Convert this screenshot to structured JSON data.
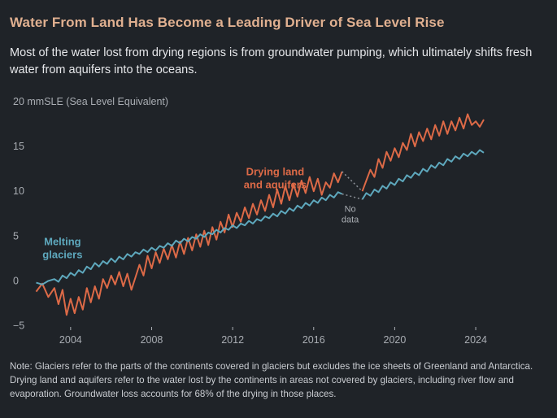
{
  "title": "Water From Land Has Become a Leading Driver of Sea Level Rise",
  "subtitle": "Most of the water lost from drying regions is from groundwater pumping, which ultimately shifts fresh water from aquifers into the oceans.",
  "note": "Note: Glaciers refer to the parts of the continents covered in glaciers but excludes the ice sheets of Greenland and Antarctica. Drying land and aquifers refer to the water lost by the continents in areas not covered by glaciers, including river flow and evaporation. Groundwater loss accounts for 68% of the drying in those places.",
  "colors": {
    "glaciers": "#5ea8bd",
    "drying": "#dd6a47",
    "gap": "#8a8f96",
    "axis_text": "#a9adb3",
    "title": "#e0b090"
  },
  "chart_data": {
    "type": "line",
    "ylabel": "mmSLE (Sea Level Equivalent)",
    "xlim": [
      2002.2,
      2024.6
    ],
    "ylim": [
      -5.5,
      20
    ],
    "x_ticks": [
      2004,
      2008,
      2012,
      2016,
      2020,
      2024
    ],
    "y_ticks": [
      -5,
      0,
      5,
      10,
      15,
      20
    ],
    "gap_label": "No data",
    "gap_range": [
      2017.5,
      2018.4
    ],
    "series": [
      {
        "name": "Drying land and aquifers",
        "label_lines": [
          "Drying land",
          "and aquifers"
        ],
        "color": "#dd6a47",
        "points": [
          [
            2002.3,
            -1.2
          ],
          [
            2002.6,
            -0.3
          ],
          [
            2002.9,
            -1.8
          ],
          [
            2003.2,
            -0.8
          ],
          [
            2003.4,
            -2.6
          ],
          [
            2003.6,
            -1.0
          ],
          [
            2003.8,
            -3.8
          ],
          [
            2004.0,
            -2.0
          ],
          [
            2004.2,
            -3.6
          ],
          [
            2004.4,
            -1.8
          ],
          [
            2004.6,
            -3.2
          ],
          [
            2004.8,
            -0.8
          ],
          [
            2005.0,
            -2.4
          ],
          [
            2005.2,
            -0.6
          ],
          [
            2005.4,
            -2.0
          ],
          [
            2005.6,
            0.2
          ],
          [
            2005.8,
            -0.8
          ],
          [
            2006.0,
            0.6
          ],
          [
            2006.2,
            -0.4
          ],
          [
            2006.4,
            1.0
          ],
          [
            2006.6,
            -0.6
          ],
          [
            2006.8,
            0.8
          ],
          [
            2007.0,
            -1.0
          ],
          [
            2007.2,
            0.4
          ],
          [
            2007.4,
            1.8
          ],
          [
            2007.6,
            0.6
          ],
          [
            2007.8,
            2.8
          ],
          [
            2008.0,
            1.4
          ],
          [
            2008.2,
            3.2
          ],
          [
            2008.4,
            2.0
          ],
          [
            2008.6,
            3.6
          ],
          [
            2008.8,
            2.4
          ],
          [
            2009.0,
            4.0
          ],
          [
            2009.2,
            2.6
          ],
          [
            2009.4,
            4.4
          ],
          [
            2009.6,
            3.0
          ],
          [
            2009.8,
            4.8
          ],
          [
            2010.0,
            3.4
          ],
          [
            2010.2,
            5.2
          ],
          [
            2010.4,
            3.8
          ],
          [
            2010.6,
            5.6
          ],
          [
            2010.8,
            4.0
          ],
          [
            2011.0,
            6.0
          ],
          [
            2011.2,
            4.6
          ],
          [
            2011.4,
            6.6
          ],
          [
            2011.6,
            5.4
          ],
          [
            2011.8,
            7.4
          ],
          [
            2012.0,
            6.0
          ],
          [
            2012.2,
            7.6
          ],
          [
            2012.4,
            6.6
          ],
          [
            2012.6,
            8.2
          ],
          [
            2012.8,
            7.0
          ],
          [
            2013.0,
            8.6
          ],
          [
            2013.2,
            7.4
          ],
          [
            2013.4,
            9.0
          ],
          [
            2013.6,
            7.8
          ],
          [
            2013.8,
            9.6
          ],
          [
            2014.0,
            8.2
          ],
          [
            2014.2,
            10.2
          ],
          [
            2014.4,
            8.6
          ],
          [
            2014.6,
            10.6
          ],
          [
            2014.8,
            9.0
          ],
          [
            2015.0,
            10.8
          ],
          [
            2015.2,
            9.4
          ],
          [
            2015.4,
            11.2
          ],
          [
            2015.6,
            9.8
          ],
          [
            2015.8,
            11.6
          ],
          [
            2016.0,
            10.0
          ],
          [
            2016.2,
            11.4
          ],
          [
            2016.4,
            9.6
          ],
          [
            2016.6,
            11.0
          ],
          [
            2016.8,
            10.4
          ],
          [
            2017.0,
            12.0
          ],
          [
            2017.2,
            11.0
          ],
          [
            2017.4,
            12.2
          ]
        ],
        "points_after_gap": [
          [
            2018.4,
            10.0
          ],
          [
            2018.6,
            11.2
          ],
          [
            2018.8,
            12.4
          ],
          [
            2019.0,
            11.6
          ],
          [
            2019.2,
            13.6
          ],
          [
            2019.4,
            12.6
          ],
          [
            2019.6,
            14.4
          ],
          [
            2019.8,
            13.4
          ],
          [
            2020.0,
            14.8
          ],
          [
            2020.2,
            13.8
          ],
          [
            2020.4,
            15.4
          ],
          [
            2020.6,
            14.6
          ],
          [
            2020.8,
            16.4
          ],
          [
            2021.0,
            15.0
          ],
          [
            2021.2,
            16.6
          ],
          [
            2021.4,
            15.6
          ],
          [
            2021.6,
            17.0
          ],
          [
            2021.8,
            15.8
          ],
          [
            2022.0,
            17.4
          ],
          [
            2022.2,
            16.2
          ],
          [
            2022.4,
            17.8
          ],
          [
            2022.6,
            16.4
          ],
          [
            2022.8,
            17.8
          ],
          [
            2023.0,
            16.8
          ],
          [
            2023.2,
            18.2
          ],
          [
            2023.4,
            17.0
          ],
          [
            2023.6,
            18.6
          ],
          [
            2023.8,
            17.4
          ],
          [
            2024.0,
            17.8
          ],
          [
            2024.2,
            17.2
          ],
          [
            2024.4,
            18.0
          ]
        ]
      },
      {
        "name": "Melting glaciers",
        "label_lines": [
          "Melting",
          "glaciers"
        ],
        "color": "#5ea8bd",
        "points": [
          [
            2002.3,
            -0.2
          ],
          [
            2002.6,
            -0.4
          ],
          [
            2002.9,
            0.0
          ],
          [
            2003.2,
            0.2
          ],
          [
            2003.4,
            -0.1
          ],
          [
            2003.6,
            0.6
          ],
          [
            2003.8,
            0.3
          ],
          [
            2004.0,
            0.9
          ],
          [
            2004.2,
            0.6
          ],
          [
            2004.4,
            1.2
          ],
          [
            2004.6,
            0.9
          ],
          [
            2004.8,
            1.6
          ],
          [
            2005.0,
            1.3
          ],
          [
            2005.2,
            2.0
          ],
          [
            2005.4,
            1.6
          ],
          [
            2005.6,
            2.2
          ],
          [
            2005.8,
            1.9
          ],
          [
            2006.0,
            2.5
          ],
          [
            2006.2,
            2.1
          ],
          [
            2006.4,
            2.7
          ],
          [
            2006.6,
            2.4
          ],
          [
            2006.8,
            3.0
          ],
          [
            2007.0,
            2.7
          ],
          [
            2007.2,
            3.2
          ],
          [
            2007.4,
            3.0
          ],
          [
            2007.6,
            3.5
          ],
          [
            2007.8,
            3.2
          ],
          [
            2008.0,
            3.7
          ],
          [
            2008.2,
            3.4
          ],
          [
            2008.4,
            3.9
          ],
          [
            2008.6,
            3.7
          ],
          [
            2008.8,
            4.2
          ],
          [
            2009.0,
            3.9
          ],
          [
            2009.2,
            4.5
          ],
          [
            2009.4,
            4.2
          ],
          [
            2009.6,
            4.7
          ],
          [
            2009.8,
            4.4
          ],
          [
            2010.0,
            4.9
          ],
          [
            2010.2,
            4.7
          ],
          [
            2010.4,
            5.2
          ],
          [
            2010.6,
            4.9
          ],
          [
            2010.8,
            5.4
          ],
          [
            2011.0,
            5.2
          ],
          [
            2011.2,
            5.7
          ],
          [
            2011.4,
            5.4
          ],
          [
            2011.6,
            5.9
          ],
          [
            2011.8,
            5.7
          ],
          [
            2012.0,
            6.2
          ],
          [
            2012.2,
            5.9
          ],
          [
            2012.4,
            6.4
          ],
          [
            2012.6,
            6.2
          ],
          [
            2012.8,
            6.7
          ],
          [
            2013.0,
            6.4
          ],
          [
            2013.2,
            6.9
          ],
          [
            2013.4,
            6.7
          ],
          [
            2013.6,
            7.2
          ],
          [
            2013.8,
            7.0
          ],
          [
            2014.0,
            7.5
          ],
          [
            2014.2,
            7.2
          ],
          [
            2014.4,
            7.8
          ],
          [
            2014.6,
            7.5
          ],
          [
            2014.8,
            8.1
          ],
          [
            2015.0,
            7.8
          ],
          [
            2015.2,
            8.4
          ],
          [
            2015.4,
            8.1
          ],
          [
            2015.6,
            8.7
          ],
          [
            2015.8,
            8.4
          ],
          [
            2016.0,
            9.0
          ],
          [
            2016.2,
            8.7
          ],
          [
            2016.4,
            9.3
          ],
          [
            2016.6,
            9.0
          ],
          [
            2016.8,
            9.6
          ],
          [
            2017.0,
            9.3
          ],
          [
            2017.2,
            9.9
          ],
          [
            2017.4,
            9.7
          ]
        ],
        "points_after_gap": [
          [
            2018.4,
            9.1
          ],
          [
            2018.6,
            9.8
          ],
          [
            2018.8,
            9.5
          ],
          [
            2019.0,
            10.2
          ],
          [
            2019.2,
            9.9
          ],
          [
            2019.4,
            10.6
          ],
          [
            2019.6,
            10.3
          ],
          [
            2019.8,
            11.0
          ],
          [
            2020.0,
            10.7
          ],
          [
            2020.2,
            11.4
          ],
          [
            2020.4,
            11.1
          ],
          [
            2020.6,
            11.8
          ],
          [
            2020.8,
            11.5
          ],
          [
            2021.0,
            12.1
          ],
          [
            2021.2,
            11.8
          ],
          [
            2021.4,
            12.5
          ],
          [
            2021.6,
            12.2
          ],
          [
            2021.8,
            12.9
          ],
          [
            2022.0,
            12.6
          ],
          [
            2022.2,
            13.2
          ],
          [
            2022.4,
            12.9
          ],
          [
            2022.6,
            13.6
          ],
          [
            2022.8,
            13.3
          ],
          [
            2023.0,
            13.9
          ],
          [
            2023.2,
            13.6
          ],
          [
            2023.4,
            14.2
          ],
          [
            2023.6,
            13.9
          ],
          [
            2023.8,
            14.4
          ],
          [
            2024.0,
            14.1
          ],
          [
            2024.2,
            14.6
          ],
          [
            2024.4,
            14.3
          ]
        ]
      }
    ]
  }
}
